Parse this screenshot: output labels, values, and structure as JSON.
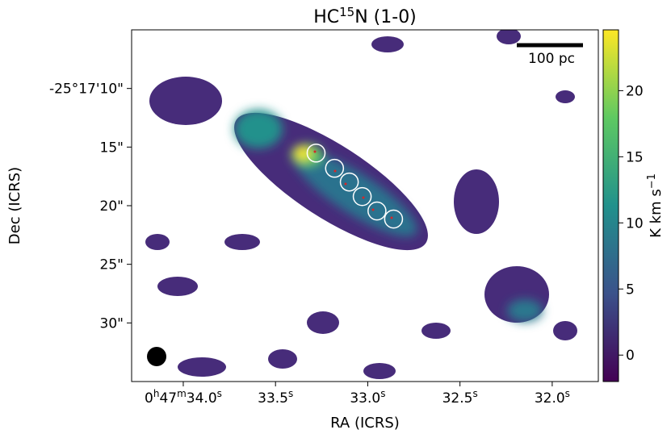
{
  "chart_data": {
    "type": "image",
    "title": [
      "HC",
      "15",
      "N (1-0)"
    ],
    "x_label": "RA (ICRS)",
    "y_label": "Dec (ICRS)",
    "xlim": [
      34.28,
      31.75
    ],
    "ylim": [
      5.0,
      35.0
    ],
    "xticks": [
      {
        "value": 34.0,
        "label": "0h47m34.0s"
      },
      {
        "value": 33.5,
        "label": "33.5s"
      },
      {
        "value": 33.0,
        "label": "33.0s"
      },
      {
        "value": 32.5,
        "label": "32.5s"
      },
      {
        "value": 32.0,
        "label": "32.0s"
      }
    ],
    "yticks": [
      {
        "value": 10,
        "label": "-25°17'10\""
      },
      {
        "value": 15,
        "label": "15\""
      },
      {
        "value": 20,
        "label": "20\""
      },
      {
        "value": 25,
        "label": "25\""
      },
      {
        "value": 30,
        "label": "30\""
      }
    ],
    "colorbar": {
      "label": [
        "K km s",
        "−1"
      ],
      "lim": [
        -2.0,
        24.6
      ],
      "ticks": [
        0,
        5,
        10,
        15,
        20
      ],
      "colormap": "viridis"
    },
    "scale_bar": "100 pc",
    "apertures": {
      "color": "#ffffff",
      "radius": 0.76,
      "x": [
        33.28,
        33.18,
        33.1,
        33.03,
        32.95,
        32.86
      ],
      "y": [
        15.51,
        16.81,
        17.98,
        19.22,
        20.45,
        21.14
      ]
    }
  }
}
